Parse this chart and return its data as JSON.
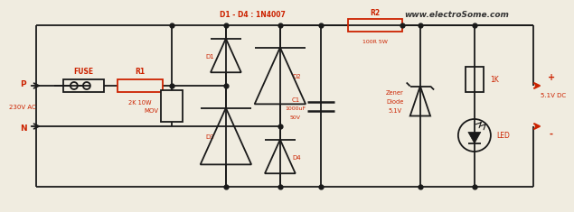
{
  "bg_color": "#f0ece0",
  "line_color": "#1a1a1a",
  "label_color": "#cc2200",
  "website": "www.electroSome.com",
  "lw": 1.3,
  "components": {
    "fuse_label": "FUSE",
    "r1_label": "R1",
    "r1_val": "2K 10W",
    "r2_label": "R2",
    "r2_val": "100R 5W",
    "mov_label": "MOV",
    "d_label": "D1 - D4 : 1N4007",
    "d1_label": "D1",
    "d2_label": "D2",
    "d3_label": "D3",
    "d4_label": "D4",
    "c1_label": "C1",
    "c1_val": "1000uF",
    "c1_val2": "50V",
    "zener_label": "Zener",
    "zener_label2": "Diode",
    "zener_val": "5.1V",
    "res_label": "1K",
    "led_label": "LED",
    "p_label": "P",
    "n_label": "N",
    "ac_label": "230V AC",
    "dc_label": "5.1V DC",
    "plus_label": "+",
    "minus_label": "-"
  }
}
